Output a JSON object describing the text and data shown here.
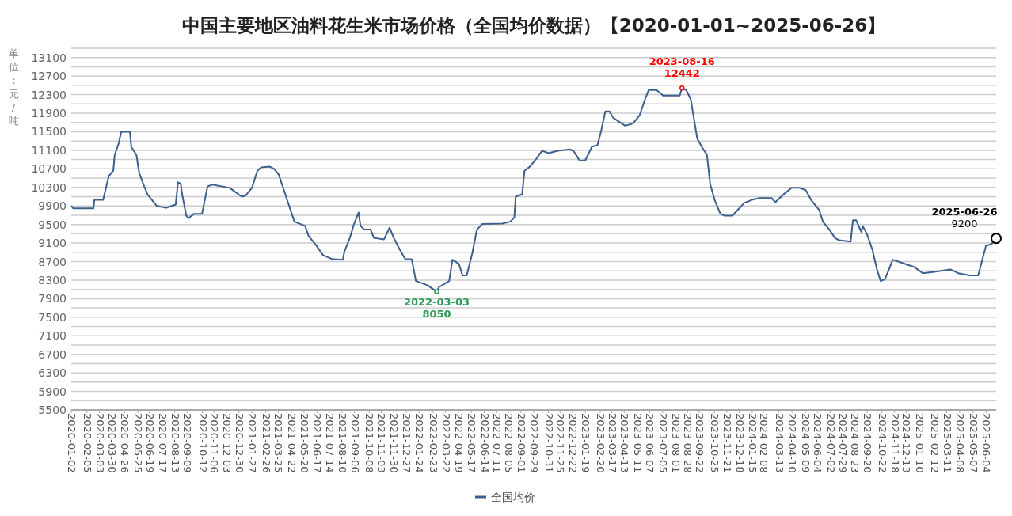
{
  "chart_data": {
    "type": "line",
    "title": "中国主要地区油料花生米市场价格（全国均价数据）【2020-01-01~2025-06-26】",
    "ylabel": "单位：元/吨",
    "x": [
      "2020-01-02",
      "2020-01-06",
      "2020-02-19",
      "2020-02-21",
      "2020-03-11",
      "2020-03-16",
      "2020-03-23",
      "2020-04-02",
      "2020-04-05",
      "2020-04-14",
      "2020-04-19",
      "2020-05-08",
      "2020-05-11",
      "2020-05-22",
      "2020-05-28",
      "2020-06-08",
      "2020-06-15",
      "2020-07-05",
      "2020-07-26",
      "2020-08-15",
      "2020-08-20",
      "2020-08-26",
      "2020-08-29",
      "2020-09-07",
      "2020-09-12",
      "2020-09-24",
      "2020-10-11",
      "2020-10-23",
      "2020-11-02",
      "2020-12-10",
      "2021-01-05",
      "2021-01-13",
      "2021-01-27",
      "2021-02-08",
      "2021-02-16",
      "2021-03-06",
      "2021-03-16",
      "2021-03-26",
      "2021-04-12",
      "2021-04-29",
      "2021-05-22",
      "2021-05-30",
      "2021-06-16",
      "2021-06-30",
      "2021-07-21",
      "2021-08-12",
      "2021-08-15",
      "2021-08-27",
      "2021-09-05",
      "2021-09-15",
      "2021-09-19",
      "2021-09-27",
      "2021-10-11",
      "2021-10-18",
      "2021-11-09",
      "2021-11-21",
      "2021-11-30",
      "2021-12-13",
      "2021-12-25",
      "2022-01-08",
      "2022-01-17",
      "2022-02-11",
      "2022-03-03",
      "2022-03-08",
      "2022-03-30",
      "2022-04-06",
      "2022-04-20",
      "2022-04-28",
      "2022-05-07",
      "2022-05-19",
      "2022-05-29",
      "2022-06-10",
      "2022-07-23",
      "2022-08-09",
      "2022-08-18",
      "2022-08-21",
      "2022-09-04",
      "2022-09-09",
      "2022-09-21",
      "2022-10-05",
      "2022-10-17",
      "2022-10-31",
      "2022-11-20",
      "2022-12-16",
      "2022-12-24",
      "2023-01-07",
      "2023-01-19",
      "2023-02-02",
      "2023-02-14",
      "2023-02-22",
      "2023-03-03",
      "2023-03-12",
      "2023-03-20",
      "2023-04-15",
      "2023-05-02",
      "2023-05-16",
      "2023-05-28",
      "2023-06-05",
      "2023-06-22",
      "2023-07-06",
      "2023-08-11",
      "2023-08-16",
      "2023-08-25",
      "2023-09-04",
      "2023-09-11",
      "2023-09-18",
      "2023-09-28",
      "2023-10-09",
      "2023-10-16",
      "2023-10-26",
      "2023-11-07",
      "2023-11-16",
      "2023-12-03",
      "2023-12-19",
      "2023-12-28",
      "2024-01-14",
      "2024-01-31",
      "2024-02-26",
      "2024-03-05",
      "2024-03-23",
      "2024-04-09",
      "2024-04-26",
      "2024-05-10",
      "2024-05-22",
      "2024-06-08",
      "2024-06-16",
      "2024-06-30",
      "2024-07-12",
      "2024-07-21",
      "2024-08-15",
      "2024-08-20",
      "2024-08-27",
      "2024-09-07",
      "2024-09-10",
      "2024-09-19",
      "2024-10-01",
      "2024-10-11",
      "2024-10-19",
      "2024-10-28",
      "2024-11-06",
      "2024-11-14",
      "2024-12-05",
      "2024-12-31",
      "2025-01-18",
      "2025-02-12",
      "2025-03-19",
      "2025-04-05",
      "2025-04-30",
      "2025-05-18",
      "2025-05-26",
      "2025-06-04",
      "2025-06-16",
      "2025-06-26"
    ],
    "series": [
      {
        "name": "全国均价",
        "color": "#3b5f8f",
        "values": [
          9900,
          9850,
          9850,
          10030,
          10030,
          10240,
          10540,
          10660,
          11000,
          11260,
          11500,
          11500,
          11170,
          11000,
          10610,
          10320,
          10150,
          9900,
          9860,
          9930,
          10410,
          10380,
          10150,
          9690,
          9640,
          9730,
          9730,
          10320,
          10360,
          10290,
          10100,
          10120,
          10290,
          10660,
          10730,
          10750,
          10700,
          10580,
          10070,
          9560,
          9470,
          9250,
          9040,
          8840,
          8750,
          8740,
          8910,
          9210,
          9510,
          9760,
          9470,
          9390,
          9390,
          9210,
          9180,
          9430,
          9210,
          8960,
          8750,
          8750,
          8280,
          8190,
          8050,
          8150,
          8280,
          8740,
          8650,
          8400,
          8400,
          8880,
          9390,
          9510,
          9520,
          9560,
          9650,
          10100,
          10150,
          10660,
          10750,
          10920,
          11090,
          11040,
          11090,
          11120,
          11090,
          10870,
          10890,
          11180,
          11210,
          11520,
          11940,
          11940,
          11800,
          11630,
          11680,
          11850,
          12200,
          12400,
          12400,
          12280,
          12280,
          12442,
          12400,
          12200,
          11770,
          11350,
          11170,
          11000,
          10370,
          10020,
          9730,
          9690,
          9690,
          9860,
          9960,
          10030,
          10070,
          10070,
          9980,
          10150,
          10290,
          10290,
          10240,
          10020,
          9810,
          9560,
          9390,
          9210,
          9160,
          9130,
          9590,
          9590,
          9340,
          9470,
          9300,
          8960,
          8530,
          8280,
          8320,
          8530,
          8740,
          8670,
          8580,
          8450,
          8480,
          8530,
          8450,
          8400,
          8400,
          8700,
          9040,
          9080,
          9200
        ]
      }
    ],
    "xlim": [
      "2020-01-02",
      "2025-06-26"
    ],
    "xticks": [
      "2020-01-02",
      "2020-02-05",
      "2020-03-03",
      "2020-03-30",
      "2020-04-26",
      "2020-05-25",
      "2020-06-19",
      "2020-07-17",
      "2020-08-13",
      "2020-09-09",
      "2020-10-12",
      "2020-11-06",
      "2020-12-03",
      "2020-12-30",
      "2021-01-27",
      "2021-02-26",
      "2021-03-25",
      "2021-04-22",
      "2021-05-20",
      "2021-06-17",
      "2021-07-14",
      "2021-08-10",
      "2021-09-06",
      "2021-10-08",
      "2021-11-03",
      "2021-11-30",
      "2021-12-27",
      "2022-01-24",
      "2022-02-23",
      "2022-03-22",
      "2022-04-19",
      "2022-05-17",
      "2022-06-14",
      "2022-07-11",
      "2022-08-05",
      "2022-09-01",
      "2022-09-29",
      "2022-10-31",
      "2022-11-25",
      "2022-12-22",
      "2023-01-19",
      "2023-02-20",
      "2023-03-17",
      "2023-04-13",
      "2023-05-11",
      "2023-06-07",
      "2023-07-05",
      "2023-08-01",
      "2023-08-28",
      "2023-09-22",
      "2023-10-25",
      "2023-11-21",
      "2023-12-18",
      "2024-01-15",
      "2024-02-08",
      "2024-03-13",
      "2024-04-10",
      "2024-05-09",
      "2024-06-04",
      "2024-07-02",
      "2024-07-29",
      "2024-08-23",
      "2024-09-20",
      "2024-10-22",
      "2024-11-18",
      "2024-12-13",
      "2025-01-10",
      "2025-02-12",
      "2025-03-11",
      "2025-04-08",
      "2025-05-07",
      "2025-06-04"
    ],
    "ylim": [
      5500,
      13300
    ],
    "yticks": [
      5500,
      {
        "value": 5700,
        "label": null
      },
      5900,
      {
        "value": 6100,
        "label": null
      },
      6300,
      {
        "value": 6500,
        "label": null
      },
      6700,
      {
        "value": 6900,
        "label": null
      },
      7100,
      {
        "value": 7300,
        "label": null
      },
      7500,
      {
        "value": 7700,
        "label": null
      },
      7900,
      {
        "value": 8100,
        "label": null
      },
      8300,
      {
        "value": 8500,
        "label": null
      },
      8700,
      {
        "value": 8900,
        "label": null
      },
      9100,
      {
        "value": 9300,
        "label": null
      },
      9500,
      {
        "value": 9700,
        "label": null
      },
      9900,
      {
        "value": 10100,
        "label": null
      },
      10300,
      {
        "value": 10500,
        "label": null
      },
      10700,
      {
        "value": 10900,
        "label": null
      },
      11100,
      {
        "value": 11300,
        "label": null
      },
      11500,
      {
        "value": 11700,
        "label": null
      },
      11900,
      {
        "value": 12100,
        "label": null
      },
      12300,
      {
        "value": 12500,
        "label": null
      },
      12700,
      {
        "value": 12900,
        "label": null
      },
      13100,
      {
        "value": 13300,
        "label": null
      }
    ],
    "grid": "y",
    "legend": "bottom",
    "annotations": [
      {
        "text": "2022-03-03\n8050",
        "x": "2022-03-03",
        "y": 8050
      },
      {
        "text": "2023-08-16\n12442",
        "x": "2023-08-16",
        "y": 12442
      },
      {
        "text": "2025-06-26\n9200",
        "x": "2025-06-26",
        "y": 9200
      }
    ]
  }
}
